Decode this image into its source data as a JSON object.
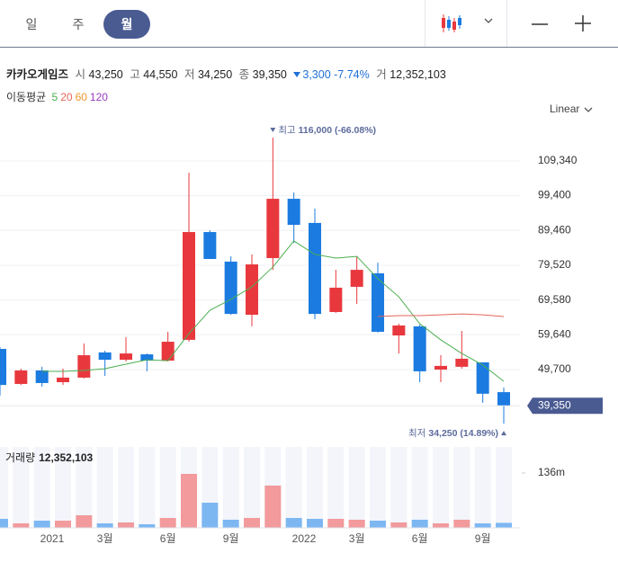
{
  "tabs": [
    "일",
    "주",
    "월"
  ],
  "selected_tab": 2,
  "scale_menu": "Linear",
  "quote": {
    "name": "카카오게임즈",
    "open_label": "시",
    "open": "43,250",
    "high_label": "고",
    "high": "44,550",
    "low_label": "저",
    "low": "34,250",
    "close_label": "종",
    "close": "39,350",
    "change": "3,300",
    "change_pct": "-7.74%",
    "volume_label": "거",
    "volume": "12,352,103"
  },
  "moving_average_label": "이동평균",
  "chart_data": {
    "type": "candlestick",
    "categories": [
      null,
      null,
      null,
      "2021",
      null,
      "3월",
      null,
      null,
      "6월",
      null,
      null,
      "9월",
      null,
      null,
      null,
      "2022",
      null,
      "3월",
      null,
      null,
      "6월",
      null,
      null,
      "9월",
      null
    ],
    "open": [
      55600,
      45600,
      49450,
      46100,
      47400,
      54600,
      52500,
      54050,
      52250,
      58200,
      89000,
      80550,
      65350,
      81550,
      98500,
      91600,
      66150,
      73350,
      77200,
      59450,
      62050,
      49700,
      50500,
      51750,
      43250
    ],
    "high": [
      56100,
      49950,
      50500,
      49950,
      57150,
      55100,
      58950,
      54300,
      60500,
      105950,
      89500,
      82050,
      82600,
      116000,
      100300,
      95700,
      78200,
      82050,
      80250,
      62800,
      62550,
      53800,
      60750,
      51750,
      44550
    ],
    "low": [
      42250,
      45300,
      44800,
      45300,
      47150,
      47900,
      52000,
      49200,
      52000,
      57650,
      81300,
      65350,
      62050,
      78200,
      85900,
      64100,
      65900,
      68450,
      60250,
      54300,
      46100,
      46100,
      49950,
      40200,
      34250
    ],
    "close": [
      45300,
      49450,
      45850,
      47400,
      53800,
      52500,
      54300,
      52250,
      57650,
      89000,
      81300,
      65600,
      79750,
      98500,
      91050,
      65600,
      73100,
      78200,
      60500,
      62300,
      49200,
      50750,
      52800,
      42800,
      39350
    ],
    "up_color": "#e8383d",
    "down_color": "#1b7be0",
    "ylim": [
      29400,
      121900
    ],
    "yticks": [
      {
        "value": 49700,
        "label": "49,700"
      },
      {
        "value": 59640,
        "label": "59,640"
      },
      {
        "value": 69580,
        "label": "69,580"
      },
      {
        "value": 79520,
        "label": "79,520"
      },
      {
        "value": 89460,
        "label": "89,460"
      },
      {
        "value": 99400,
        "label": "99,400"
      },
      {
        "value": 109340,
        "label": "109,340"
      }
    ],
    "grid": true,
    "moving_averages": [
      {
        "name": "5",
        "color": "#4caf50",
        "values": [
          null,
          null,
          49200,
          49200,
          49450,
          49950,
          51250,
          52500,
          52250,
          59950,
          66650,
          69750,
          73350,
          79000,
          86450,
          82600,
          81550,
          82050,
          75650,
          70500,
          62800,
          58200,
          54300,
          51000,
          46350
        ]
      },
      {
        "name": "20",
        "color": "#e5665a",
        "values": [
          null,
          null,
          null,
          null,
          null,
          null,
          null,
          null,
          null,
          null,
          null,
          null,
          null,
          null,
          null,
          null,
          null,
          null,
          64850,
          65100,
          65100,
          65350,
          65600,
          65350,
          64850
        ]
      },
      {
        "name": "60",
        "color": "#f0962e"
      },
      {
        "name": "120",
        "color": "#9b3cc4"
      }
    ],
    "annotations": [
      {
        "label": "최고",
        "text": "116,000 (-66.08%)",
        "value": 116000
      },
      {
        "label": "최저",
        "text": "34,250 (14.89%)",
        "value": 34250
      }
    ],
    "last_price_color": "#4a5b92",
    "volume": {
      "label": "거래량",
      "values": [
        22300000,
        11100000,
        17800000,
        17800000,
        31200000,
        11100000,
        13400000,
        8900000,
        24500000,
        133800000,
        62400000,
        20100000,
        24500000,
        104800000,
        24500000,
        22300000,
        22300000,
        20100000,
        17800000,
        13400000,
        20100000,
        11100000,
        20100000,
        11100000,
        12352103
      ],
      "up_color": "#f29a9c",
      "down_color": "#7db7f2",
      "ylim": [
        0,
        200700000
      ],
      "yticks": [
        {
          "value": 136000000,
          "label": "136m"
        }
      ]
    }
  }
}
